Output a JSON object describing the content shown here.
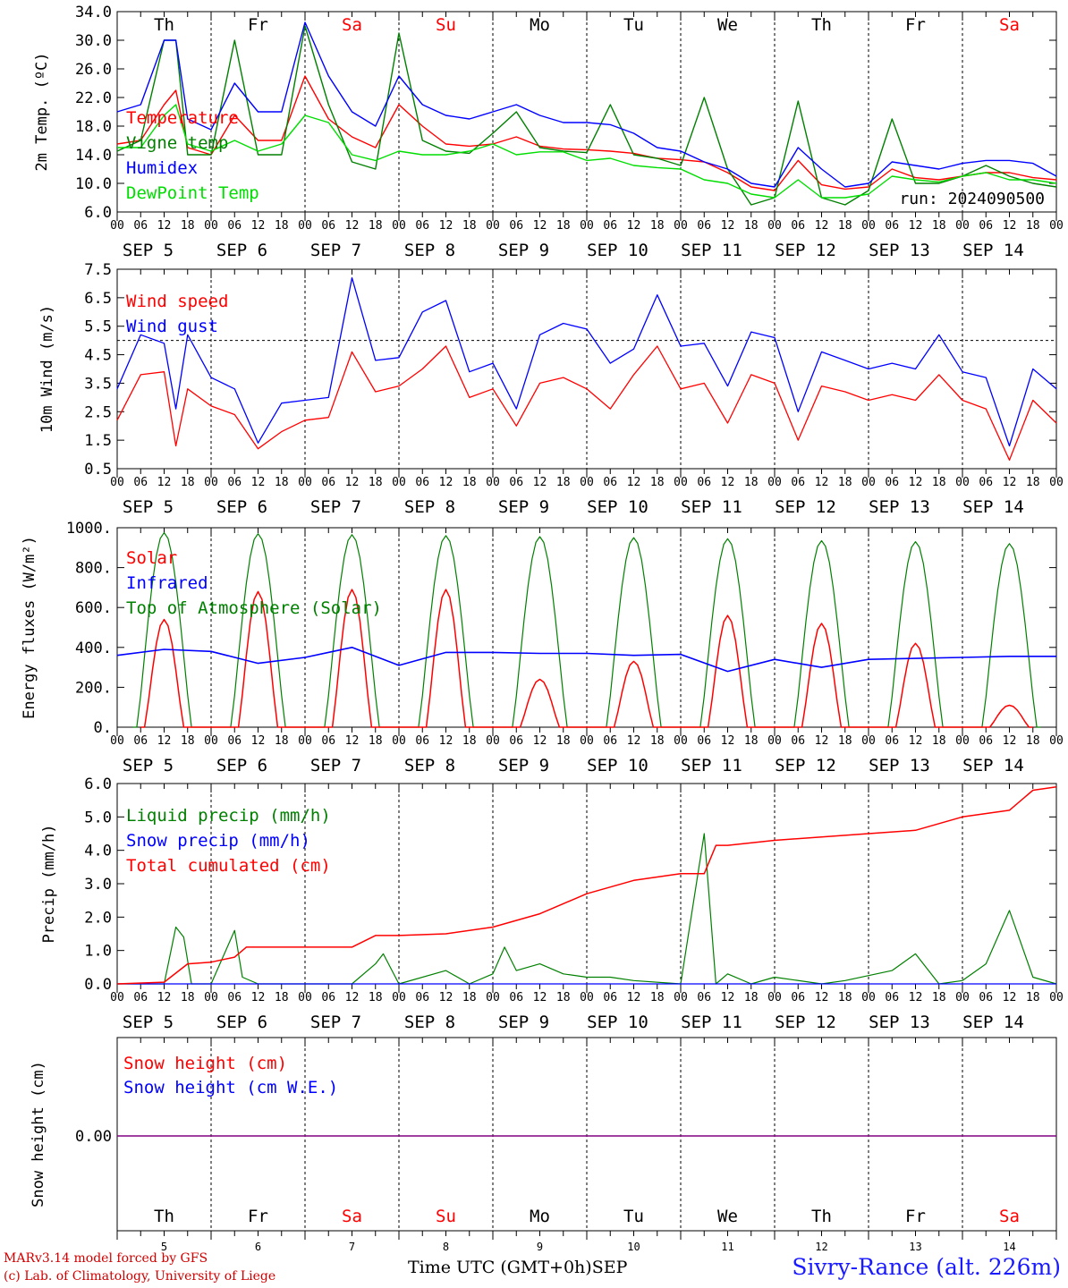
{
  "run_label": "run: 2024090500",
  "x_hour_labels": [
    "00",
    "06",
    "12",
    "18"
  ],
  "x_end_label": "00",
  "date_labels": [
    "SEP  5",
    "SEP  6",
    "SEP  7",
    "SEP  8",
    "SEP  9",
    "SEP 10",
    "SEP 11",
    "SEP 12",
    "SEP 13",
    "SEP 14"
  ],
  "weekdays": [
    {
      "label": "Th",
      "color": "#000000"
    },
    {
      "label": "Fr",
      "color": "#000000"
    },
    {
      "label": "Sa",
      "color": "#ff0000"
    },
    {
      "label": "Su",
      "color": "#ff0000"
    },
    {
      "label": "Mo",
      "color": "#000000"
    },
    {
      "label": "Tu",
      "color": "#000000"
    },
    {
      "label": "We",
      "color": "#000000"
    },
    {
      "label": "Th",
      "color": "#000000"
    },
    {
      "label": "Fr",
      "color": "#000000"
    },
    {
      "label": "Sa",
      "color": "#ff0000"
    }
  ],
  "bottom_day_numbers": [
    "5",
    "6",
    "7",
    "8",
    "9",
    "10",
    "11",
    "12",
    "13",
    "14"
  ],
  "footer": {
    "credit_line1": "MARv3.14 model forced by GFS",
    "credit_line2": "(c) Lab. of Climatology, University of Liege",
    "time_axis_label": "Time UTC (GMT+0h)",
    "month_label": "SEP",
    "site": "Sivry-Rance (alt. 226m)"
  },
  "colors": {
    "red": "#ff0000",
    "blue": "#0000ff",
    "green": "#008000",
    "lightgreen": "#00dd00",
    "purple": "#800080"
  },
  "chart_data": [
    {
      "type": "line",
      "ylabel": "2m Temp. (ºC)",
      "ylim": [
        6,
        34
      ],
      "yticks": [
        "6.0",
        "10.0",
        "14.0",
        "18.0",
        "22.0",
        "26.0",
        "30.0",
        "34.0"
      ],
      "yticks_values": [
        6,
        10,
        14,
        18,
        22,
        26,
        30,
        34
      ],
      "x": [
        0,
        6,
        12,
        15,
        18,
        24,
        30,
        36,
        42,
        48,
        54,
        60,
        66,
        72,
        78,
        84,
        90,
        96,
        102,
        108,
        114,
        120,
        126,
        132,
        138,
        144,
        150,
        156,
        162,
        168,
        174,
        180,
        186,
        192,
        198,
        204,
        210,
        216,
        222,
        228,
        234,
        240
      ],
      "series": [
        {
          "name": "Temperature",
          "color": "#ff0000",
          "values": [
            15.5,
            16,
            21,
            23,
            15,
            14,
            19.5,
            16,
            16,
            25,
            19,
            16.5,
            15,
            21,
            18,
            15.5,
            15.2,
            15.5,
            16.5,
            15.2,
            14.8,
            14.7,
            14.5,
            14.2,
            13.5,
            13.3,
            13,
            11.5,
            9.5,
            9,
            13.2,
            9.8,
            9.2,
            9.5,
            12,
            10.8,
            10.5,
            11,
            11.5,
            11.5,
            10.8,
            10.5
          ]
        },
        {
          "name": "Vigne temp",
          "color": "#008000",
          "values": [
            14.5,
            16,
            30,
            30,
            14,
            14,
            30,
            14,
            14,
            32,
            21,
            13,
            12,
            31,
            16,
            14.5,
            14.2,
            17,
            20,
            15,
            14.5,
            14.3,
            21,
            14,
            13.5,
            12.5,
            22,
            12,
            7,
            8,
            21.5,
            8,
            7,
            9,
            19,
            10,
            10,
            11,
            12.5,
            11,
            10,
            9.5
          ]
        },
        {
          "name": "Humidex",
          "color": "#0000ff",
          "values": [
            20,
            21,
            30,
            30,
            19,
            17.5,
            24,
            20,
            20,
            32.5,
            25,
            20,
            18,
            25,
            21,
            19.5,
            19,
            20,
            21,
            19.5,
            18.5,
            18.5,
            18.2,
            17,
            15,
            14.5,
            13,
            12,
            10,
            9.5,
            15,
            12,
            9.5,
            10,
            13,
            12.5,
            12,
            12.8,
            13.2,
            13.2,
            12.8,
            11
          ]
        },
        {
          "name": "DewPoint Temp",
          "color": "#00dd00",
          "values": [
            15,
            15,
            19.5,
            21,
            15.5,
            14.5,
            16,
            14.5,
            15.5,
            19.5,
            18.5,
            14,
            13.2,
            14.5,
            14,
            14,
            14.5,
            15.5,
            14,
            14.4,
            14.4,
            13.2,
            13.5,
            12.5,
            12.2,
            12,
            10.5,
            10,
            8.5,
            8,
            10.5,
            8,
            8,
            8.5,
            11,
            10.5,
            10.2,
            11,
            11.5,
            10.5,
            10.5,
            10
          ]
        }
      ]
    },
    {
      "type": "line",
      "ylabel": "10m Wind (m/s)",
      "ylim": [
        0.5,
        7.5
      ],
      "yticks": [
        "0.5",
        "1.5",
        "2.5",
        "3.5",
        "4.5",
        "5.5",
        "6.5",
        "7.5"
      ],
      "yticks_values": [
        0.5,
        1.5,
        2.5,
        3.5,
        4.5,
        5.5,
        6.5,
        7.5
      ],
      "reference_line": 5,
      "x": [
        0,
        6,
        12,
        15,
        18,
        24,
        30,
        36,
        42,
        48,
        54,
        60,
        66,
        72,
        78,
        84,
        90,
        96,
        102,
        108,
        114,
        120,
        126,
        132,
        138,
        144,
        150,
        156,
        162,
        168,
        174,
        180,
        186,
        192,
        198,
        204,
        210,
        216,
        222,
        228,
        234,
        240
      ],
      "series": [
        {
          "name": "Wind speed",
          "color": "#ff0000",
          "values": [
            2.2,
            3.8,
            3.9,
            1.3,
            3.3,
            2.7,
            2.4,
            1.2,
            1.8,
            2.2,
            2.3,
            4.6,
            3.2,
            3.4,
            4.0,
            4.8,
            3.0,
            3.3,
            2.0,
            3.5,
            3.7,
            3.3,
            2.6,
            3.8,
            4.8,
            3.3,
            3.5,
            2.1,
            3.8,
            3.5,
            1.5,
            3.4,
            3.2,
            2.9,
            3.1,
            2.9,
            3.8,
            2.9,
            2.6,
            0.8,
            2.9,
            2.1
          ]
        },
        {
          "name": "Wind gust",
          "color": "#0000ff",
          "values": [
            3.3,
            5.2,
            4.9,
            2.6,
            5.2,
            3.7,
            3.3,
            1.4,
            2.8,
            2.9,
            3.0,
            7.2,
            4.3,
            4.4,
            6.0,
            6.4,
            3.9,
            4.2,
            2.6,
            5.2,
            5.6,
            5.4,
            4.2,
            4.7,
            6.6,
            4.8,
            4.9,
            3.4,
            5.3,
            5.1,
            2.5,
            4.6,
            4.3,
            4.0,
            4.2,
            4.0,
            5.2,
            3.9,
            3.7,
            1.3,
            4.0,
            3.3
          ]
        }
      ]
    },
    {
      "type": "line",
      "ylabel": "Energy fluxes (W/m²)",
      "ylim": [
        0,
        1000
      ],
      "yticks": [
        "0.",
        "200.",
        "400.",
        "600.",
        "800.",
        "1000."
      ],
      "yticks_values": [
        0,
        200,
        400,
        600,
        800,
        1000
      ],
      "series": [
        {
          "name": "Solar",
          "color": "#ff0000",
          "day_peaks": [
            540,
            680,
            690,
            690,
            240,
            330,
            560,
            520,
            420,
            110
          ]
        },
        {
          "name": "Infrared",
          "color": "#0000ff",
          "x": [
            0,
            12,
            24,
            36,
            48,
            60,
            72,
            84,
            96,
            108,
            120,
            132,
            144,
            156,
            168,
            180,
            192,
            204,
            216,
            228,
            240
          ],
          "values": [
            360,
            390,
            380,
            320,
            350,
            400,
            310,
            375,
            375,
            370,
            370,
            360,
            365,
            280,
            340,
            300,
            340,
            345,
            350,
            355,
            355
          ]
        },
        {
          "name": "Top of Atmosphere (Solar)",
          "color": "#008000",
          "day_peaks": [
            975,
            970,
            965,
            960,
            955,
            950,
            945,
            935,
            930,
            920
          ]
        }
      ]
    },
    {
      "type": "line",
      "ylabel": "Precip (mm/h)",
      "ylim": [
        0,
        6
      ],
      "yticks": [
        "0.0",
        "1.0",
        "2.0",
        "3.0",
        "4.0",
        "5.0",
        "6.0"
      ],
      "yticks_values": [
        0,
        1,
        2,
        3,
        4,
        5,
        6
      ],
      "series": [
        {
          "name": "Liquid precip (mm/h)",
          "color": "#008000",
          "x": [
            0,
            12,
            15,
            17,
            19,
            24,
            30,
            32,
            36,
            60,
            66,
            68,
            72,
            84,
            90,
            96,
            99,
            102,
            108,
            114,
            120,
            126,
            132,
            144,
            150,
            153,
            156,
            162,
            168,
            180,
            186,
            198,
            204,
            210,
            216,
            222,
            228,
            234,
            240
          ],
          "values": [
            0,
            0,
            1.7,
            1.4,
            0,
            0,
            1.6,
            0.2,
            0,
            0,
            0.6,
            0.9,
            0,
            0.4,
            0,
            0.3,
            1.1,
            0.4,
            0.6,
            0.3,
            0.2,
            0.2,
            0.1,
            0,
            4.5,
            0,
            0.3,
            0,
            0.2,
            0,
            0.1,
            0.4,
            0.9,
            0,
            0.1,
            0.6,
            2.2,
            0.2,
            0
          ]
        },
        {
          "name": "Snow precip (mm/h)",
          "color": "#0000ff",
          "x": [
            0,
            240
          ],
          "values": [
            0,
            0
          ]
        },
        {
          "name": "Total cumulated (cm)",
          "color": "#ff0000",
          "x": [
            0,
            12,
            18,
            24,
            30,
            33,
            36,
            60,
            66,
            72,
            84,
            96,
            108,
            120,
            132,
            144,
            150,
            153,
            156,
            168,
            180,
            192,
            204,
            216,
            228,
            234,
            240
          ],
          "values": [
            0,
            0.05,
            0.6,
            0.65,
            0.8,
            1.1,
            1.1,
            1.1,
            1.45,
            1.45,
            1.5,
            1.7,
            2.1,
            2.7,
            3.1,
            3.3,
            3.3,
            4.15,
            4.15,
            4.3,
            4.4,
            4.5,
            4.6,
            5.0,
            5.2,
            5.8,
            5.9
          ]
        }
      ]
    },
    {
      "type": "line",
      "ylabel": "Snow height (cm)",
      "ytick": "0.00",
      "series": [
        {
          "name": "Snow height (cm)",
          "color": "#ff0000",
          "x": [
            0,
            240
          ],
          "values": [
            0,
            0
          ]
        },
        {
          "name": "Snow height (cm W.E.)",
          "color": "#0000ff",
          "x": [
            0,
            240
          ],
          "values": [
            0,
            0
          ]
        }
      ]
    }
  ]
}
